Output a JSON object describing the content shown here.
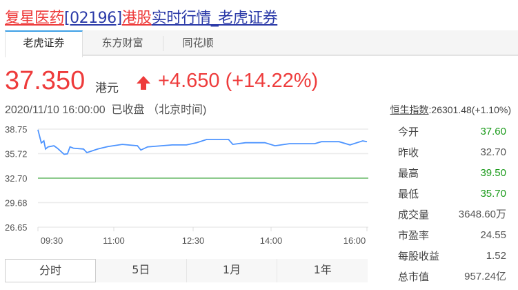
{
  "title": {
    "name": "复星医药",
    "code": "[02196]",
    "market": "港股",
    "suffix": "实时行情_老虎证券"
  },
  "tabs": [
    {
      "label": "老虎证券",
      "active": true
    },
    {
      "label": "东方财富"
    },
    {
      "label": "同花顺"
    }
  ],
  "quote": {
    "price": "37.350",
    "unit": "港元",
    "change": "+4.650 (+14.22%)",
    "direction": "up",
    "datetime": "2020/11/10 16:00:00",
    "status": "已收盘",
    "timezone": "（北京时间)"
  },
  "index": {
    "name": "恒生指数",
    "value": ":26301.48(+1.10%)"
  },
  "stats": [
    {
      "label": "今开",
      "value": "37.60",
      "color": "#1a9a1a"
    },
    {
      "label": "昨收",
      "value": "32.70"
    },
    {
      "label": "最高",
      "value": "39.50",
      "color": "#1a9a1a"
    },
    {
      "label": "最低",
      "value": "35.70",
      "color": "#1a9a1a"
    },
    {
      "label": "成交量",
      "value": "3648.60万"
    },
    {
      "label": "市盈率",
      "value": "24.55"
    },
    {
      "label": "每股收益",
      "value": "1.52"
    },
    {
      "label": "总市值",
      "value": "957.24亿"
    }
  ],
  "periods": [
    {
      "label": "分时",
      "active": true
    },
    {
      "label": "5日"
    },
    {
      "label": "1月"
    },
    {
      "label": "1年"
    }
  ],
  "chart_data": {
    "type": "line",
    "y_ticks": [
      "38.75",
      "35.72",
      "32.70",
      "29.68",
      "26.65"
    ],
    "ylim": [
      26.65,
      38.75
    ],
    "x_ticks": [
      "09:30",
      "11:00",
      "12:30",
      "14:00",
      "16:00"
    ],
    "prev_close": 32.7,
    "colors": {
      "price": "#4d94ff",
      "prev_close": "#7cc47c"
    },
    "series": [
      {
        "x": [
          "09:30",
          "09:34",
          "09:37",
          "09:39",
          "09:42",
          "09:49",
          "09:53",
          "10:01",
          "10:05",
          "10:08",
          "10:12",
          "10:24",
          "10:28",
          "10:41",
          "10:53",
          "11:10",
          "11:28",
          "11:32",
          "11:40",
          "12:09",
          "12:26",
          "12:38",
          "12:50",
          "13:16",
          "13:21",
          "13:36",
          "13:59",
          "14:11",
          "14:28",
          "14:58",
          "15:06",
          "15:27",
          "15:40",
          "15:55",
          "16:00"
        ],
        "values": [
          38.68,
          37.05,
          37.3,
          36.3,
          36.56,
          36.7,
          36.4,
          35.65,
          35.7,
          36.56,
          36.4,
          36.3,
          35.85,
          36.3,
          36.6,
          36.87,
          36.7,
          36.17,
          36.56,
          36.8,
          36.8,
          37.07,
          37.47,
          37.47,
          36.87,
          37.07,
          37.07,
          36.7,
          36.95,
          36.95,
          37.2,
          37.2,
          36.8,
          37.3,
          37.2
        ]
      }
    ]
  }
}
